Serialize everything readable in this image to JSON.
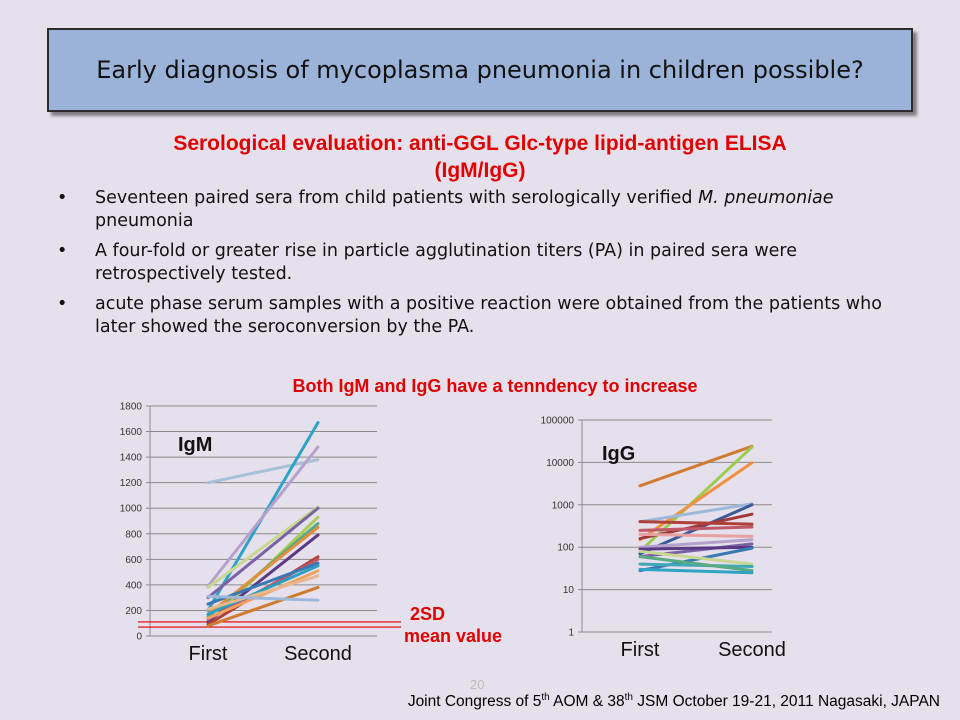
{
  "slide": {
    "title": "Early diagnosis of mycoplasma pneumonia in children possible?",
    "subtitle_line1": "Serological evaluation: anti-GGL Glc-type lipid-antigen ELISA",
    "subtitle_line2": "(IgM/IgG)",
    "bullets": [
      {
        "pre": "Seventeen paired sera from child patients with serologically verified ",
        "em": "M. pneumoniae",
        "post": " pneumonia"
      },
      {
        "pre": "A four-fold or greater rise in particle agglutination titers (PA) in paired sera were retrospectively tested.",
        "em": "",
        "post": ""
      },
      {
        "pre": "acute phase serum samples with a positive reaction were obtained from the patients who later showed the seroconversion by the PA.",
        "em": "",
        "post": ""
      }
    ],
    "chart_caption": "Both IgM and IgG have a tenndency to increase",
    "label_2sd": "2SD",
    "label_mean": "mean value",
    "page_number": "20",
    "footer": {
      "part1": "Joint Congress of 5",
      "sup1": "th",
      "part2": " AOM & 38",
      "sup2": "th",
      "part3": " JSM October 19-21, 2011 Nagasaki, JAPAN"
    }
  },
  "chart_data": [
    {
      "type": "line",
      "title": "IgM",
      "categories": [
        "First",
        "Second"
      ],
      "ylim": [
        0,
        1800
      ],
      "yticks": [
        0,
        200,
        400,
        600,
        800,
        1000,
        1200,
        1400,
        1600,
        1800
      ],
      "grid": true,
      "reference_lines": [
        {
          "label": "2SD",
          "value": 110,
          "color": "#e00000"
        },
        {
          "label": "mean value",
          "value": 70,
          "color": "#e00000"
        }
      ],
      "series": [
        {
          "color": "#a6c0da",
          "values": [
            1200,
            1380
          ]
        },
        {
          "color": "#2ea3c6",
          "values": [
            200,
            1670
          ]
        },
        {
          "color": "#b4a2cc",
          "values": [
            390,
            1480
          ]
        },
        {
          "color": "#c8d890",
          "values": [
            380,
            1010
          ]
        },
        {
          "color": "#7a62a6",
          "values": [
            300,
            1000
          ]
        },
        {
          "color": "#a8cc58",
          "values": [
            100,
            930
          ]
        },
        {
          "color": "#58aa82",
          "values": [
            150,
            880
          ]
        },
        {
          "color": "#e0903c",
          "values": [
            170,
            850
          ]
        },
        {
          "color": "#5a3a86",
          "values": [
            110,
            790
          ]
        },
        {
          "color": "#b04038",
          "values": [
            90,
            620
          ]
        },
        {
          "color": "#c0586a",
          "values": [
            130,
            600
          ]
        },
        {
          "color": "#3a78b4",
          "values": [
            250,
            570
          ]
        },
        {
          "color": "#2aa0c0",
          "values": [
            170,
            550
          ]
        },
        {
          "color": "#f0a060",
          "values": [
            140,
            510
          ]
        },
        {
          "color": "#e8b890",
          "values": [
            210,
            470
          ]
        },
        {
          "color": "#d07c30",
          "values": [
            80,
            380
          ]
        },
        {
          "color": "#9eb8dc",
          "values": [
            310,
            280
          ]
        }
      ]
    },
    {
      "type": "line",
      "title": "IgG",
      "categories": [
        "First",
        "Second"
      ],
      "ylim": [
        1,
        100000
      ],
      "yscale": "log",
      "yticks": [
        1,
        10,
        100,
        1000,
        10000,
        100000
      ],
      "grid": true,
      "series": [
        {
          "color": "#d07c30",
          "values": [
            2800,
            24000
          ]
        },
        {
          "color": "#9acc50",
          "values": [
            80,
            23000
          ]
        },
        {
          "color": "#f09040",
          "values": [
            150,
            9800
          ]
        },
        {
          "color": "#9eb8dc",
          "values": [
            400,
            1050
          ]
        },
        {
          "color": "#3a5a98",
          "values": [
            70,
            1000
          ]
        },
        {
          "color": "#a03838",
          "values": [
            160,
            600
          ]
        },
        {
          "color": "#b04038",
          "values": [
            400,
            350
          ]
        },
        {
          "color": "#c0586a",
          "values": [
            250,
            300
          ]
        },
        {
          "color": "#e8a0a0",
          "values": [
            200,
            180
          ]
        },
        {
          "color": "#b4a2cc",
          "values": [
            100,
            150
          ]
        },
        {
          "color": "#7a62a6",
          "values": [
            60,
            120
          ]
        },
        {
          "color": "#5a3a86",
          "values": [
            90,
            100
          ]
        },
        {
          "color": "#3a78b4",
          "values": [
            28,
            95
          ]
        },
        {
          "color": "#c8d890",
          "values": [
            80,
            40
          ]
        },
        {
          "color": "#40a8b8",
          "values": [
            40,
            35
          ]
        },
        {
          "color": "#58aa82",
          "values": [
            60,
            28
          ]
        },
        {
          "color": "#2ea3c6",
          "values": [
            30,
            25
          ]
        }
      ]
    }
  ]
}
